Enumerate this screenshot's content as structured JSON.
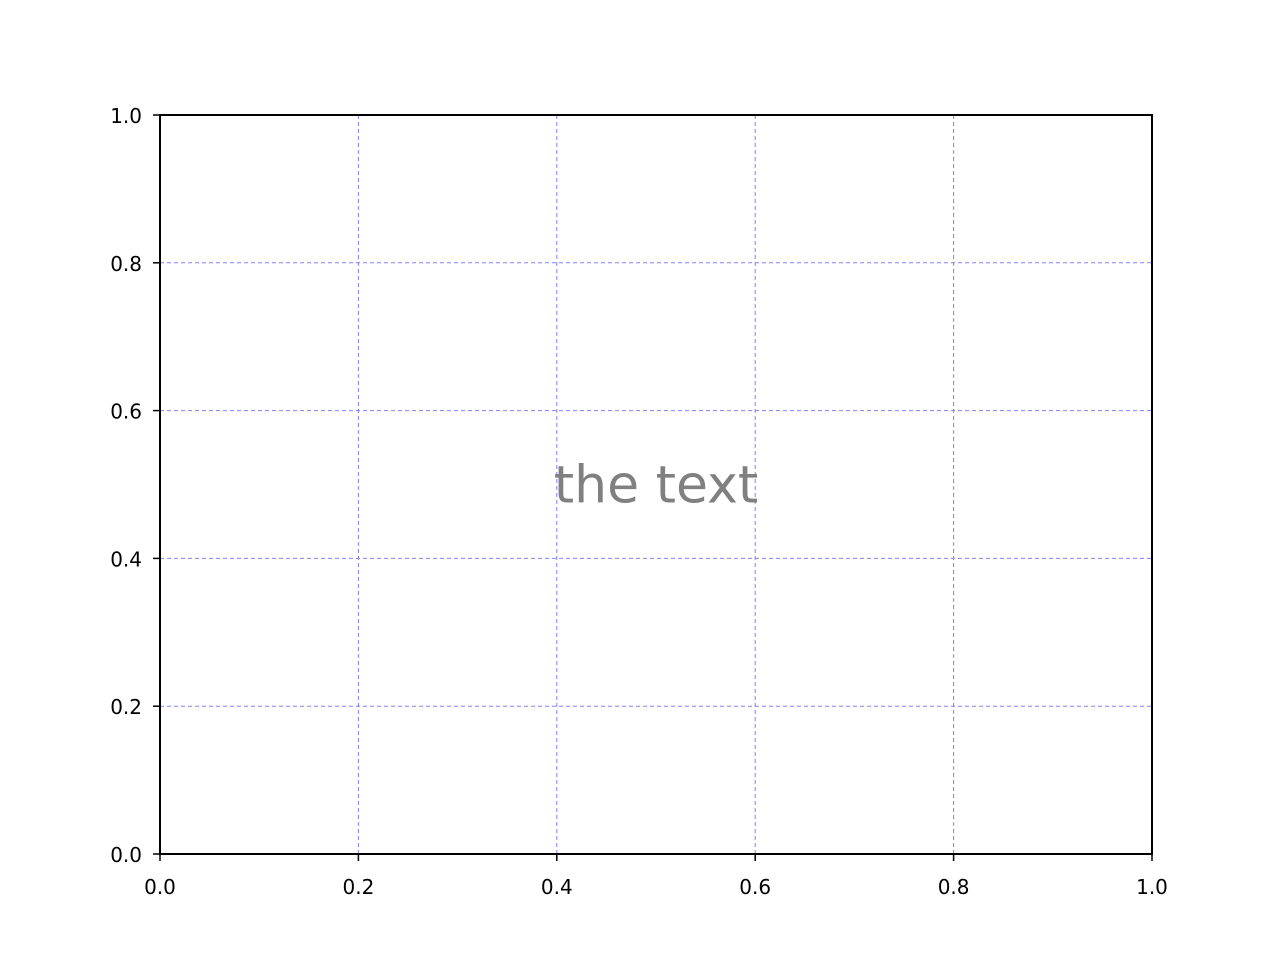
{
  "chart_data": {
    "type": "scatter",
    "title": "",
    "xlabel": "",
    "ylabel": "",
    "xlim": [
      0.0,
      1.0
    ],
    "ylim": [
      0.0,
      1.0
    ],
    "x_ticks": [
      0.0,
      0.2,
      0.4,
      0.6,
      0.8,
      1.0
    ],
    "y_ticks": [
      0.0,
      0.2,
      0.4,
      0.6,
      0.8,
      1.0
    ],
    "x_tick_labels": [
      "0.0",
      "0.2",
      "0.4",
      "0.6",
      "0.8",
      "1.0"
    ],
    "y_tick_labels": [
      "0.0",
      "0.2",
      "0.4",
      "0.6",
      "0.8",
      "1.0"
    ],
    "grid": true,
    "grid_style": "dashed",
    "grid_color": "#8080ff",
    "series": [],
    "annotations": [
      {
        "text": "the text",
        "x": 0.5,
        "y": 0.5,
        "color": "#808080"
      }
    ]
  }
}
